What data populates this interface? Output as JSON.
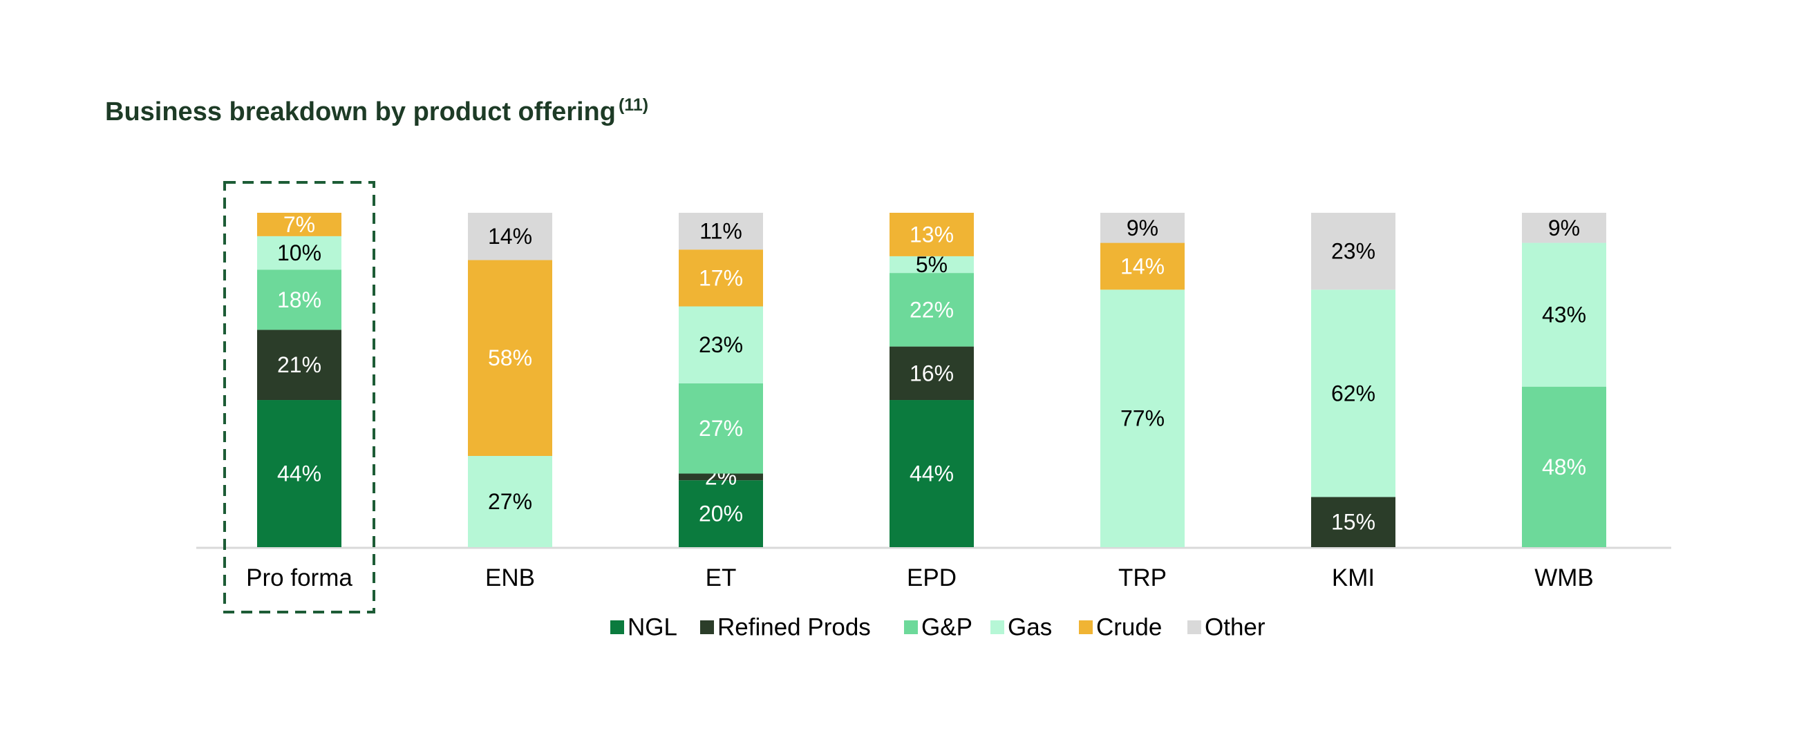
{
  "chart_data": {
    "type": "bar",
    "stacked": true,
    "title": "Business breakdown by product offering",
    "title_superscript": "(11)",
    "categories": [
      "Pro forma",
      "ENB",
      "ET",
      "EPD",
      "TRP",
      "KMI",
      "WMB"
    ],
    "highlighted_category": "Pro forma",
    "legend_position": "bottom",
    "grid": false,
    "series": [
      {
        "name": "NGL",
        "color": "#0b7b3e",
        "label_color": "#ffffff",
        "values": [
          44,
          0,
          20,
          44,
          0,
          0,
          0
        ]
      },
      {
        "name": "Refined Prods",
        "color": "#2b3d29",
        "label_color": "#ffffff",
        "values": [
          21,
          0,
          2,
          16,
          0,
          15,
          0
        ]
      },
      {
        "name": "G&P",
        "color": "#6dd99a",
        "label_color": "#ffffff",
        "values": [
          18,
          0,
          27,
          22,
          0,
          0,
          48
        ]
      },
      {
        "name": "Gas",
        "color": "#b6f7d6",
        "label_color": "#000000",
        "values": [
          10,
          27,
          23,
          5,
          77,
          62,
          43
        ]
      },
      {
        "name": "Crude",
        "color": "#f0b434",
        "label_color": "#ffffff",
        "values": [
          7,
          58,
          17,
          13,
          14,
          0,
          0
        ]
      },
      {
        "name": "Other",
        "color": "#d9d9d9",
        "label_color": "#000000",
        "values": [
          0,
          14,
          11,
          0,
          9,
          23,
          9
        ]
      }
    ]
  }
}
